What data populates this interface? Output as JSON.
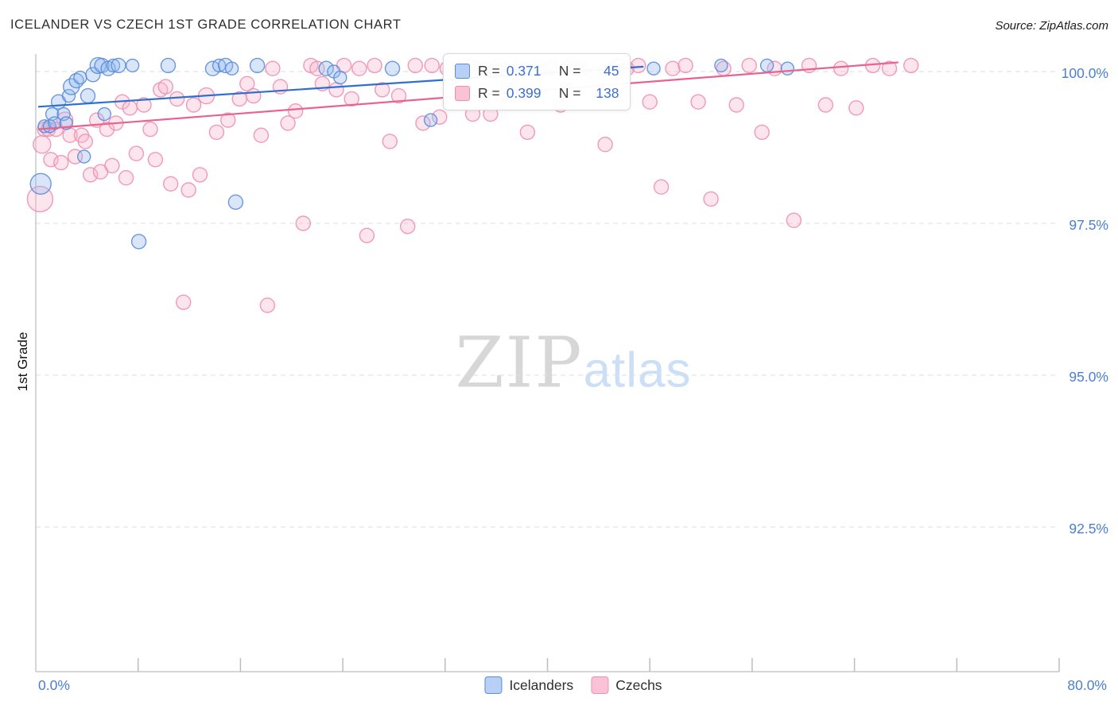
{
  "header": {
    "title": "ICELANDER VS CZECH 1ST GRADE CORRELATION CHART",
    "source": "Source: ZipAtlas.com"
  },
  "watermark": {
    "part1": "ZIP",
    "part2": "atlas"
  },
  "legend_box": {
    "rows": [
      {
        "series": "Icelanders",
        "r_label": "R =",
        "r_value": "0.371",
        "n_label": "N =",
        "n_value": "45"
      },
      {
        "series": "Czechs",
        "r_label": "R =",
        "r_value": "0.399",
        "n_label": "N =",
        "n_value": "138"
      }
    ]
  },
  "legend": {
    "items": [
      {
        "label": "Icelanders"
      },
      {
        "label": "Czechs"
      }
    ]
  },
  "chart_data": {
    "type": "scatter",
    "title": "ICELANDER VS CZECH 1ST GRADE CORRELATION CHART",
    "xlabel": "",
    "ylabel": "1st Grade",
    "xlim": [
      0,
      80
    ],
    "ylim": [
      90,
      100.3
    ],
    "x_tick_labels": [
      "0.0%",
      "80.0%"
    ],
    "y_ticks": [
      {
        "label": "100.0%",
        "value": 100
      },
      {
        "label": "97.5%",
        "value": 97.5
      },
      {
        "label": "95.0%",
        "value": 95
      },
      {
        "label": "92.5%",
        "value": 92.5
      }
    ],
    "accent": "#4a7fd1",
    "grid": "dashed-horizontal",
    "legend_position": "bottom-center",
    "series": [
      {
        "id": "icelanders",
        "name": "Icelanders",
        "R": 0.371,
        "N": 45,
        "z": 1,
        "fill": "#93b7f0",
        "stroke": "#5b8dd9",
        "line_color": "#2e6fd0",
        "trend": {
          "x": [
            0,
            47.5
          ],
          "y": [
            99.42,
            100.08
          ]
        },
        "points": [
          [
            0.2,
            98.15,
            13
          ],
          [
            0.5,
            99.1,
            8
          ],
          [
            0.9,
            99.1,
            8
          ],
          [
            1.1,
            99.3,
            8
          ],
          [
            1.3,
            99.15,
            8
          ],
          [
            1.6,
            99.5,
            9
          ],
          [
            2.0,
            99.3,
            8
          ],
          [
            2.2,
            99.15,
            8
          ],
          [
            2.4,
            99.6,
            8
          ],
          [
            2.6,
            99.75,
            10
          ],
          [
            3.0,
            99.85,
            9
          ],
          [
            3.3,
            99.9,
            8
          ],
          [
            3.6,
            98.6,
            8
          ],
          [
            3.9,
            99.6,
            9
          ],
          [
            4.3,
            99.95,
            9
          ],
          [
            4.7,
            100.1,
            10
          ],
          [
            5.0,
            100.1,
            9
          ],
          [
            5.2,
            99.3,
            8
          ],
          [
            5.5,
            100.05,
            9
          ],
          [
            5.9,
            100.1,
            8
          ],
          [
            6.3,
            100.1,
            9
          ],
          [
            7.4,
            100.1,
            8
          ],
          [
            7.9,
            97.2,
            9
          ],
          [
            10.2,
            100.1,
            9
          ],
          [
            13.7,
            100.05,
            9
          ],
          [
            14.2,
            100.1,
            8
          ],
          [
            14.7,
            100.1,
            9
          ],
          [
            15.2,
            100.05,
            8
          ],
          [
            15.5,
            97.85,
            9
          ],
          [
            17.2,
            100.1,
            9
          ],
          [
            22.6,
            100.05,
            9
          ],
          [
            23.2,
            100.0,
            8
          ],
          [
            23.7,
            99.9,
            8
          ],
          [
            27.8,
            100.05,
            9
          ],
          [
            30.8,
            99.2,
            8
          ],
          [
            33.9,
            100.1,
            8
          ],
          [
            35.2,
            100.05,
            8
          ],
          [
            38.2,
            100.05,
            8
          ],
          [
            40.3,
            100.1,
            8
          ],
          [
            42.2,
            100.05,
            8
          ],
          [
            45.6,
            100.1,
            8
          ],
          [
            48.3,
            100.05,
            8
          ],
          [
            53.6,
            100.1,
            8
          ],
          [
            57.2,
            100.1,
            8
          ],
          [
            58.8,
            100.05,
            8
          ]
        ]
      },
      {
        "id": "czechs",
        "name": "Czechs",
        "R": 0.399,
        "N": 138,
        "z": 0,
        "fill": "#f8b4cb",
        "stroke": "#ee8fb0",
        "line_color": "#e8648e",
        "trend": {
          "x": [
            0,
            67.5
          ],
          "y": [
            99.05,
            100.15
          ]
        },
        "points": [
          [
            0.15,
            97.9,
            16
          ],
          [
            0.3,
            98.8,
            11
          ],
          [
            0.5,
            99.05,
            9
          ],
          [
            0.8,
            99.05,
            9
          ],
          [
            1.0,
            98.55,
            9
          ],
          [
            1.4,
            99.05,
            9
          ],
          [
            1.8,
            98.5,
            9
          ],
          [
            2.1,
            99.2,
            10
          ],
          [
            2.5,
            98.95,
            9
          ],
          [
            2.9,
            98.6,
            9
          ],
          [
            3.4,
            98.95,
            9
          ],
          [
            3.7,
            98.85,
            9
          ],
          [
            4.1,
            98.3,
            9
          ],
          [
            4.6,
            99.2,
            9
          ],
          [
            4.9,
            98.35,
            9
          ],
          [
            5.4,
            99.05,
            9
          ],
          [
            5.8,
            98.45,
            9
          ],
          [
            6.1,
            99.15,
            9
          ],
          [
            6.6,
            99.5,
            9
          ],
          [
            6.9,
            98.25,
            9
          ],
          [
            7.2,
            99.4,
            9
          ],
          [
            7.7,
            98.65,
            9
          ],
          [
            8.3,
            99.45,
            9
          ],
          [
            8.8,
            99.05,
            9
          ],
          [
            9.2,
            98.55,
            9
          ],
          [
            9.6,
            99.7,
            9
          ],
          [
            10.0,
            99.75,
            9
          ],
          [
            10.4,
            98.15,
            9
          ],
          [
            10.9,
            99.55,
            9
          ],
          [
            11.4,
            96.2,
            9
          ],
          [
            11.8,
            98.05,
            9
          ],
          [
            12.2,
            99.45,
            9
          ],
          [
            12.7,
            98.3,
            9
          ],
          [
            13.2,
            99.6,
            10
          ],
          [
            14.0,
            99.0,
            9
          ],
          [
            14.9,
            99.2,
            9
          ],
          [
            15.8,
            99.55,
            9
          ],
          [
            16.4,
            99.8,
            9
          ],
          [
            16.9,
            99.6,
            9
          ],
          [
            17.5,
            98.95,
            9
          ],
          [
            18.0,
            96.15,
            9
          ],
          [
            18.4,
            100.05,
            9
          ],
          [
            19.0,
            99.75,
            9
          ],
          [
            19.6,
            99.15,
            9
          ],
          [
            20.2,
            99.35,
            9
          ],
          [
            20.8,
            97.5,
            9
          ],
          [
            21.4,
            100.1,
            9
          ],
          [
            21.9,
            100.05,
            9
          ],
          [
            22.3,
            99.8,
            9
          ],
          [
            23.4,
            99.7,
            9
          ],
          [
            24.0,
            100.1,
            9
          ],
          [
            24.6,
            99.55,
            9
          ],
          [
            25.2,
            100.05,
            9
          ],
          [
            25.8,
            97.3,
            9
          ],
          [
            26.4,
            100.1,
            9
          ],
          [
            27.0,
            99.7,
            9
          ],
          [
            27.6,
            98.85,
            9
          ],
          [
            28.3,
            99.6,
            9
          ],
          [
            29.0,
            97.45,
            9
          ],
          [
            29.6,
            100.1,
            9
          ],
          [
            30.2,
            99.15,
            9
          ],
          [
            30.9,
            100.1,
            9
          ],
          [
            31.5,
            99.25,
            9
          ],
          [
            32.1,
            100.05,
            9
          ],
          [
            32.8,
            99.95,
            9
          ],
          [
            33.4,
            100.1,
            9
          ],
          [
            34.1,
            99.3,
            9
          ],
          [
            34.8,
            100.05,
            9
          ],
          [
            35.5,
            99.3,
            9
          ],
          [
            36.2,
            100.1,
            9
          ],
          [
            36.9,
            99.8,
            9
          ],
          [
            37.6,
            100.05,
            9
          ],
          [
            38.4,
            99.0,
            9
          ],
          [
            39.2,
            100.1,
            9
          ],
          [
            40.1,
            100.05,
            9
          ],
          [
            41.0,
            99.45,
            9
          ],
          [
            41.8,
            100.1,
            9
          ],
          [
            42.7,
            100.05,
            9
          ],
          [
            43.6,
            99.95,
            9
          ],
          [
            44.5,
            98.8,
            9
          ],
          [
            45.3,
            100.1,
            9
          ],
          [
            46.2,
            100.05,
            9
          ],
          [
            47.1,
            100.1,
            9
          ],
          [
            48.0,
            99.5,
            9
          ],
          [
            48.9,
            98.1,
            9
          ],
          [
            49.8,
            100.05,
            9
          ],
          [
            50.8,
            100.1,
            9
          ],
          [
            51.8,
            99.5,
            9
          ],
          [
            52.8,
            97.9,
            9
          ],
          [
            53.8,
            100.05,
            9
          ],
          [
            54.8,
            99.45,
            9
          ],
          [
            55.8,
            100.1,
            9
          ],
          [
            56.8,
            99.0,
            9
          ],
          [
            57.8,
            100.05,
            9
          ],
          [
            59.3,
            97.55,
            9
          ],
          [
            60.5,
            100.1,
            9
          ],
          [
            61.8,
            99.45,
            9
          ],
          [
            63.0,
            100.05,
            9
          ],
          [
            64.2,
            99.4,
            9
          ],
          [
            65.5,
            100.1,
            9
          ],
          [
            66.8,
            100.05,
            9
          ],
          [
            68.5,
            100.1,
            9
          ]
        ]
      }
    ]
  }
}
